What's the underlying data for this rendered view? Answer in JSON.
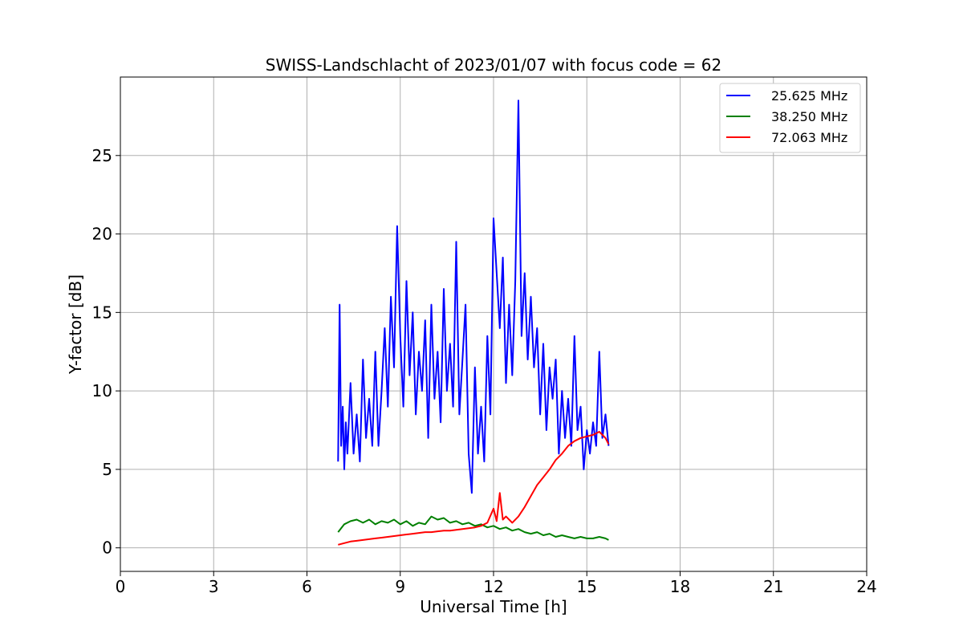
{
  "chart_data": {
    "type": "line",
    "title": "SWISS-Landschlacht of 2023/01/07 with focus code = 62",
    "xlabel": "Universal Time [h]",
    "ylabel": "Y-factor [dB]",
    "xlim": [
      0,
      24
    ],
    "ylim": [
      -1.5,
      30
    ],
    "xticks": [
      0,
      3,
      6,
      9,
      12,
      15,
      18,
      21,
      24
    ],
    "yticks": [
      0,
      5,
      10,
      15,
      20,
      25
    ],
    "grid": true,
    "legend_position": "top-right",
    "series": [
      {
        "name": "25.625 MHz",
        "color": "#0000ff",
        "x": [
          7.0,
          7.05,
          7.1,
          7.15,
          7.2,
          7.25,
          7.3,
          7.4,
          7.5,
          7.6,
          7.7,
          7.8,
          7.9,
          8.0,
          8.1,
          8.2,
          8.3,
          8.4,
          8.5,
          8.6,
          8.7,
          8.8,
          8.9,
          9.0,
          9.1,
          9.2,
          9.3,
          9.4,
          9.5,
          9.6,
          9.7,
          9.8,
          9.9,
          10.0,
          10.1,
          10.2,
          10.3,
          10.4,
          10.5,
          10.6,
          10.7,
          10.8,
          10.9,
          11.0,
          11.1,
          11.2,
          11.3,
          11.4,
          11.5,
          11.6,
          11.7,
          11.8,
          11.9,
          12.0,
          12.1,
          12.2,
          12.3,
          12.4,
          12.5,
          12.6,
          12.7,
          12.8,
          12.9,
          13.0,
          13.1,
          13.2,
          13.3,
          13.4,
          13.5,
          13.6,
          13.7,
          13.8,
          13.9,
          14.0,
          14.1,
          14.2,
          14.3,
          14.4,
          14.5,
          14.6,
          14.7,
          14.8,
          14.9,
          15.0,
          15.1,
          15.2,
          15.3,
          15.4,
          15.5,
          15.6,
          15.7
        ],
        "y": [
          5.5,
          15.5,
          6.5,
          9.0,
          5.0,
          8.0,
          6.0,
          10.5,
          6.0,
          8.5,
          5.5,
          12.0,
          7.0,
          9.5,
          6.5,
          12.5,
          6.5,
          10.0,
          14.0,
          9.0,
          16.0,
          11.5,
          20.5,
          13.5,
          9.0,
          17.0,
          11.0,
          15.0,
          8.5,
          12.5,
          10.0,
          14.5,
          7.0,
          15.5,
          9.5,
          12.5,
          8.0,
          16.5,
          10.0,
          13.0,
          9.0,
          19.5,
          8.5,
          12.0,
          15.5,
          6.0,
          3.5,
          11.5,
          6.0,
          9.0,
          5.5,
          13.5,
          8.5,
          21.0,
          17.5,
          14.0,
          18.5,
          10.5,
          15.5,
          11.0,
          17.0,
          28.5,
          13.5,
          17.5,
          12.0,
          16.0,
          11.5,
          14.0,
          8.5,
          13.0,
          7.5,
          11.5,
          9.5,
          12.0,
          6.0,
          10.0,
          7.0,
          9.5,
          6.5,
          13.5,
          7.5,
          9.0,
          5.0,
          7.5,
          6.0,
          8.0,
          6.5,
          12.5,
          7.0,
          8.5,
          6.5
        ]
      },
      {
        "name": "38.250 MHz",
        "color": "#008000",
        "x": [
          7.0,
          7.2,
          7.4,
          7.6,
          7.8,
          8.0,
          8.2,
          8.4,
          8.6,
          8.8,
          9.0,
          9.2,
          9.4,
          9.6,
          9.8,
          10.0,
          10.2,
          10.4,
          10.6,
          10.8,
          11.0,
          11.2,
          11.4,
          11.6,
          11.8,
          12.0,
          12.2,
          12.4,
          12.6,
          12.8,
          13.0,
          13.2,
          13.4,
          13.6,
          13.8,
          14.0,
          14.2,
          14.4,
          14.6,
          14.8,
          15.0,
          15.2,
          15.4,
          15.6,
          15.7
        ],
        "y": [
          1.0,
          1.5,
          1.7,
          1.8,
          1.6,
          1.8,
          1.5,
          1.7,
          1.6,
          1.8,
          1.5,
          1.7,
          1.4,
          1.6,
          1.5,
          2.0,
          1.8,
          1.9,
          1.6,
          1.7,
          1.5,
          1.6,
          1.4,
          1.5,
          1.3,
          1.4,
          1.2,
          1.3,
          1.1,
          1.2,
          1.0,
          0.9,
          1.0,
          0.8,
          0.9,
          0.7,
          0.8,
          0.7,
          0.6,
          0.7,
          0.6,
          0.6,
          0.7,
          0.6,
          0.5
        ]
      },
      {
        "name": "72.063 MHz",
        "color": "#ff0000",
        "x": [
          7.0,
          7.2,
          7.4,
          7.6,
          7.8,
          8.0,
          8.2,
          8.4,
          8.6,
          8.8,
          9.0,
          9.2,
          9.4,
          9.6,
          9.8,
          10.0,
          10.2,
          10.4,
          10.6,
          10.8,
          11.0,
          11.2,
          11.4,
          11.6,
          11.8,
          12.0,
          12.1,
          12.2,
          12.3,
          12.4,
          12.6,
          12.8,
          13.0,
          13.2,
          13.4,
          13.6,
          13.8,
          14.0,
          14.2,
          14.4,
          14.6,
          14.8,
          15.0,
          15.2,
          15.4,
          15.6,
          15.7
        ],
        "y": [
          0.2,
          0.3,
          0.4,
          0.45,
          0.5,
          0.55,
          0.6,
          0.65,
          0.7,
          0.75,
          0.8,
          0.85,
          0.9,
          0.95,
          1.0,
          1.0,
          1.05,
          1.1,
          1.1,
          1.15,
          1.2,
          1.25,
          1.3,
          1.4,
          1.6,
          2.5,
          1.7,
          3.5,
          1.8,
          2.0,
          1.6,
          2.0,
          2.6,
          3.3,
          4.0,
          4.5,
          5.0,
          5.6,
          6.0,
          6.5,
          6.8,
          7.0,
          7.1,
          7.2,
          7.4,
          7.0,
          6.6
        ]
      }
    ]
  }
}
